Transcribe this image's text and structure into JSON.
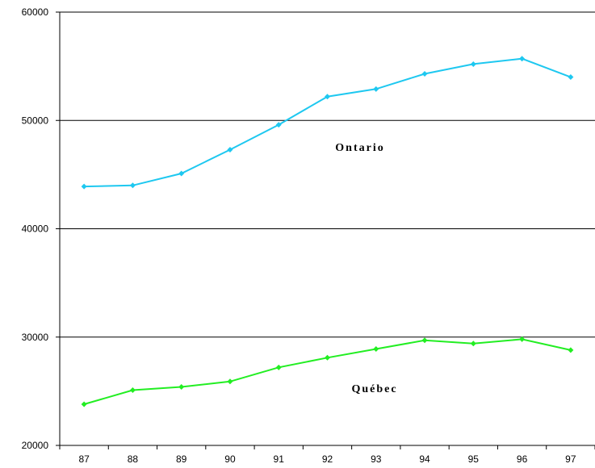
{
  "chart_data": {
    "type": "line",
    "title": "",
    "xlabel": "",
    "ylabel": "",
    "categories": [
      "87",
      "88",
      "89",
      "90",
      "91",
      "92",
      "93",
      "94",
      "95",
      "96",
      "97"
    ],
    "ylim": [
      20000,
      60000
    ],
    "yticks": [
      "20000",
      "30000",
      "40000",
      "50000",
      "60000"
    ],
    "grid": "horizontal",
    "series": [
      {
        "name": "Ontario",
        "color": "#1ec8f0",
        "values": [
          43900,
          44000,
          45100,
          47300,
          49600,
          52200,
          52900,
          54300,
          55200,
          55700,
          54000
        ]
      },
      {
        "name": "Québec",
        "color": "#22ee22",
        "values": [
          23800,
          25100,
          25400,
          25900,
          27200,
          28100,
          28900,
          29700,
          29400,
          29800,
          28800
        ]
      }
    ]
  }
}
